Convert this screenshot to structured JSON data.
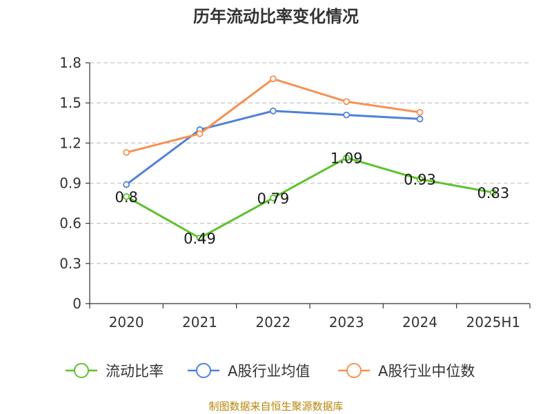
{
  "chart_data": {
    "type": "line",
    "title": "历年流动比率变化情况",
    "categories": [
      "2020",
      "2021",
      "2022",
      "2023",
      "2024",
      "2025H1"
    ],
    "y_ticks": [
      "0",
      "0.3",
      "0.6",
      "0.9",
      "1.2",
      "1.5",
      "1.8"
    ],
    "ylim": [
      0,
      1.8
    ],
    "grid": "horizontal-dashed",
    "legend_position": "bottom",
    "series": [
      {
        "name": "流动比率",
        "color": "#5cc22a",
        "values": [
          0.8,
          0.49,
          0.79,
          1.09,
          0.93,
          0.83
        ],
        "labels": [
          "0.8",
          "0.49",
          "0.79",
          "1.09",
          "0.93",
          "0.83"
        ],
        "show_labels": true
      },
      {
        "name": "A股行业均值",
        "color": "#4f81d9",
        "values": [
          0.89,
          1.3,
          1.44,
          1.41,
          1.38,
          null
        ],
        "show_labels": false
      },
      {
        "name": "A股行业中位数",
        "color": "#f79052",
        "values": [
          1.13,
          1.27,
          1.68,
          1.51,
          1.43,
          null
        ],
        "show_labels": false
      }
    ]
  },
  "footer": {
    "source": "制图数据来自恒生聚源数据库"
  }
}
